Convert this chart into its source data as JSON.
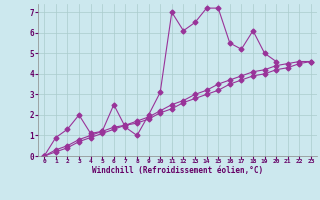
{
  "xlabel": "Windchill (Refroidissement éolien,°C)",
  "bg_color": "#cce8ee",
  "line_color": "#993399",
  "grid_color": "#aacccc",
  "xlim": [
    -0.5,
    23.5
  ],
  "ylim": [
    0,
    7.4
  ],
  "xticks": [
    0,
    1,
    2,
    3,
    4,
    5,
    6,
    7,
    8,
    9,
    10,
    11,
    12,
    13,
    14,
    15,
    16,
    17,
    18,
    19,
    20,
    21,
    22,
    23
  ],
  "yticks": [
    0,
    1,
    2,
    3,
    4,
    5,
    6,
    7
  ],
  "s1_x": [
    0,
    1,
    2,
    3,
    4,
    5,
    6,
    7,
    8,
    9,
    10,
    11,
    12,
    13,
    14,
    15,
    16,
    17,
    18,
    19,
    20
  ],
  "s1_y": [
    0.0,
    0.9,
    1.3,
    2.0,
    1.1,
    1.2,
    2.5,
    1.4,
    1.0,
    2.0,
    3.1,
    7.0,
    6.1,
    6.5,
    7.2,
    7.2,
    5.5,
    5.2,
    6.1,
    5.0,
    4.6
  ],
  "s2_x": [
    0,
    1,
    2,
    3,
    4,
    5,
    6,
    7,
    8,
    9,
    10,
    11,
    12,
    13,
    14,
    15,
    16,
    17,
    18,
    19,
    20,
    21,
    22,
    23
  ],
  "s2_y": [
    0.0,
    0.3,
    0.5,
    0.8,
    1.0,
    1.2,
    1.4,
    1.5,
    1.7,
    1.9,
    2.2,
    2.5,
    2.7,
    3.0,
    3.2,
    3.5,
    3.7,
    3.9,
    4.1,
    4.2,
    4.4,
    4.5,
    4.6,
    4.6
  ],
  "s3_x": [
    0,
    1,
    2,
    3,
    4,
    5,
    6,
    7,
    8,
    9,
    10,
    11,
    12,
    13,
    14,
    15,
    16,
    17,
    18,
    19,
    20,
    21,
    22,
    23
  ],
  "s3_y": [
    0.0,
    0.2,
    0.4,
    0.7,
    0.9,
    1.1,
    1.3,
    1.5,
    1.6,
    1.8,
    2.1,
    2.3,
    2.6,
    2.8,
    3.0,
    3.2,
    3.5,
    3.7,
    3.9,
    4.0,
    4.2,
    4.3,
    4.5,
    4.6
  ]
}
